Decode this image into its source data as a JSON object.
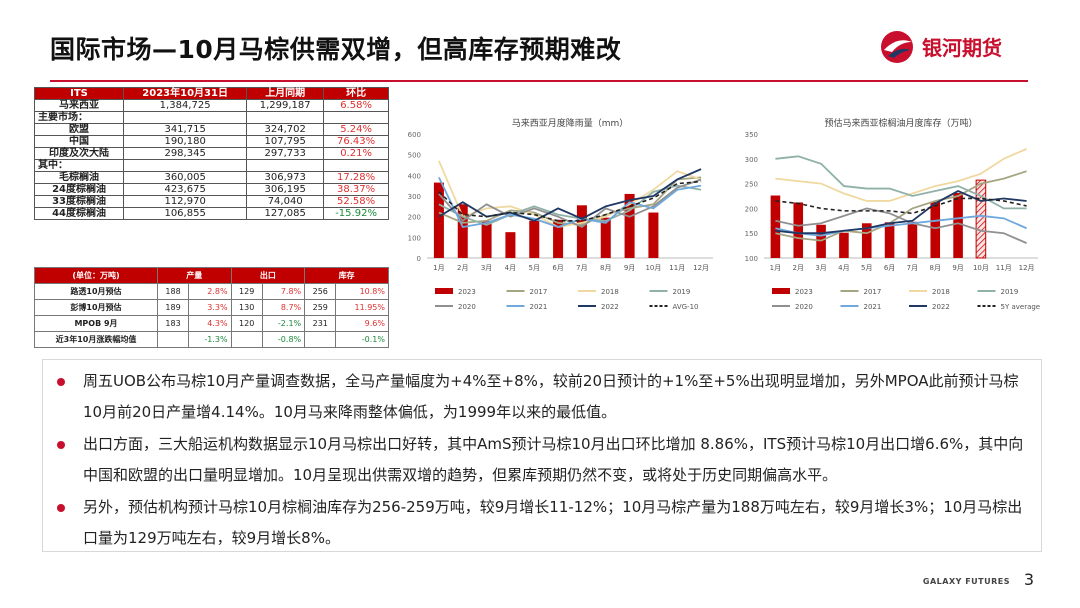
{
  "header": {
    "title": "国际市场—10月马棕供需双增，但高库存预期难改",
    "logo_text": "银河期货"
  },
  "table1": {
    "headers": [
      "ITS",
      "2023年10月31日",
      "上月同期",
      "环比"
    ],
    "rows": [
      {
        "label": "马来西亚",
        "v1": "1,384,725",
        "v2": "1,299,187",
        "chg": "6.58%",
        "sign": "pos",
        "section": false
      },
      {
        "label": "主要市场：",
        "section": true
      },
      {
        "label": "欧盟",
        "v1": "341,715",
        "v2": "324,702",
        "chg": "5.24%",
        "sign": "pos",
        "section": false
      },
      {
        "label": "中国",
        "v1": "190,180",
        "v2": "107,795",
        "chg": "76.43%",
        "sign": "pos",
        "section": false
      },
      {
        "label": "印度及次大陆",
        "v1": "298,345",
        "v2": "297,733",
        "chg": "0.21%",
        "sign": "pos",
        "section": false
      },
      {
        "label": "其中：",
        "section": true
      },
      {
        "label": "毛棕榈油",
        "v1": "360,005",
        "v2": "306,973",
        "chg": "17.28%",
        "sign": "pos",
        "section": false
      },
      {
        "label": "24度棕榈油",
        "v1": "423,675",
        "v2": "306,195",
        "chg": "38.37%",
        "sign": "pos",
        "section": false
      },
      {
        "label": "33度棕榈油",
        "v1": "112,970",
        "v2": "74,040",
        "chg": "52.58%",
        "sign": "pos",
        "section": false
      },
      {
        "label": "44度棕榈油",
        "v1": "106,855",
        "v2": "127,085",
        "chg": "-15.92%",
        "sign": "neg",
        "section": false
      }
    ]
  },
  "table2": {
    "headers": [
      "(单位：万吨)",
      "产量",
      "出口",
      "库存"
    ],
    "rows": [
      {
        "label": "路透10月预估",
        "a": "188",
        "ap": "2.8%",
        "b": "129",
        "bp": "7.8%",
        "c": "256",
        "cp": "10.8%"
      },
      {
        "label": "彭博10月预估",
        "a": "189",
        "ap": "3.3%",
        "b": "130",
        "bp": "8.7%",
        "c": "259",
        "cp": "11.95%"
      },
      {
        "label": "MPOB 9月",
        "a": "183",
        "ap": "4.3%",
        "b": "120",
        "bp": "-2.1%",
        "c": "231",
        "cp": "9.6%"
      },
      {
        "label": "近3年10月涨跌幅均值",
        "a": "",
        "ap": "-1.3%",
        "b": "",
        "bp": "-0.8%",
        "c": "",
        "cp": "-0.1%"
      }
    ]
  },
  "chart_data": [
    {
      "type": "bar",
      "title": "马来西亚月度降雨量（mm）",
      "categories": [
        "1月",
        "2月",
        "3月",
        "4月",
        "5月",
        "6月",
        "7月",
        "8月",
        "9月",
        "10月",
        "11月",
        "12月"
      ],
      "ylim": [
        0,
        600
      ],
      "yticks": [
        0,
        100,
        200,
        300,
        400,
        500,
        600
      ],
      "series": [
        {
          "name": "2023",
          "kind": "bar",
          "color": "#c00000",
          "values": [
            365,
            260,
            180,
            125,
            180,
            185,
            255,
            195,
            310,
            220,
            null,
            null
          ]
        },
        {
          "name": "2017",
          "kind": "line",
          "color": "#a5a582",
          "values": [
            220,
            170,
            180,
            230,
            220,
            170,
            160,
            210,
            240,
            260,
            380,
            390
          ]
        },
        {
          "name": "2018",
          "kind": "line",
          "color": "#f0d9a0",
          "values": [
            470,
            200,
            240,
            250,
            210,
            150,
            170,
            200,
            260,
            330,
            420,
            380
          ]
        },
        {
          "name": "2019",
          "kind": "line",
          "color": "#8fb1a8",
          "values": [
            260,
            200,
            160,
            210,
            250,
            210,
            190,
            180,
            230,
            320,
            350,
            330
          ]
        },
        {
          "name": "2020",
          "kind": "line",
          "color": "#909090",
          "values": [
            310,
            180,
            260,
            200,
            240,
            200,
            150,
            240,
            200,
            250,
            340,
            380
          ]
        },
        {
          "name": "2021",
          "kind": "line",
          "color": "#6fa8dc",
          "values": [
            390,
            150,
            170,
            210,
            190,
            150,
            190,
            170,
            270,
            240,
            330,
            350
          ]
        },
        {
          "name": "2022",
          "kind": "line",
          "color": "#1f3864",
          "values": [
            200,
            270,
            200,
            220,
            180,
            240,
            190,
            250,
            280,
            300,
            380,
            430
          ]
        },
        {
          "name": "AVG-10",
          "kind": "dash",
          "color": "#222222",
          "values": [
            320,
            210,
            200,
            220,
            210,
            180,
            180,
            210,
            250,
            290,
            360,
            370
          ]
        }
      ]
    },
    {
      "type": "bar",
      "title": "预估马来西亚棕榈油月度库存（万吨）",
      "categories": [
        "1月",
        "2月",
        "3月",
        "4月",
        "5月",
        "6月",
        "7月",
        "8月",
        "9月",
        "10月",
        "11月",
        "12月"
      ],
      "ylim": [
        100,
        350
      ],
      "yticks": [
        100,
        150,
        200,
        250,
        300,
        350
      ],
      "series": [
        {
          "name": "2023",
          "kind": "bar",
          "color": "#c00000",
          "values": [
            226,
            212,
            167,
            151,
            170,
            172,
            173,
            213,
            231,
            257,
            null,
            null
          ]
        },
        {
          "name": "2017",
          "kind": "line",
          "color": "#a5a582",
          "values": [
            150,
            140,
            135,
            155,
            150,
            170,
            200,
            215,
            225,
            250,
            260,
            275
          ]
        },
        {
          "name": "2018",
          "kind": "line",
          "color": "#f0d9a0",
          "values": [
            260,
            255,
            250,
            230,
            215,
            215,
            230,
            245,
            255,
            270,
            300,
            320
          ]
        },
        {
          "name": "2019",
          "kind": "line",
          "color": "#8fb1a8",
          "values": [
            300,
            305,
            290,
            245,
            240,
            240,
            225,
            235,
            245,
            225,
            200,
            200
          ]
        },
        {
          "name": "2020",
          "kind": "line",
          "color": "#909090",
          "values": [
            175,
            165,
            170,
            185,
            200,
            190,
            170,
            160,
            170,
            155,
            150,
            130
          ]
        },
        {
          "name": "2021",
          "kind": "line",
          "color": "#6fa8dc",
          "values": [
            160,
            150,
            145,
            155,
            160,
            165,
            170,
            175,
            180,
            185,
            180,
            160
          ]
        },
        {
          "name": "2022",
          "kind": "line",
          "color": "#1f3864",
          "values": [
            155,
            150,
            150,
            155,
            160,
            170,
            175,
            210,
            235,
            215,
            220,
            215
          ]
        },
        {
          "name": "5Y average",
          "kind": "dash",
          "color": "#222222",
          "values": [
            215,
            210,
            200,
            195,
            195,
            195,
            190,
            205,
            220,
            220,
            215,
            205
          ]
        }
      ]
    }
  ],
  "notes": [
    "周五UOB公布马棕10月产量调查数据，全马产量幅度为+4%至+8%，较前20日预计的+1%至+5%出现明显增加，另外MPOA此前预计马棕10月前20日产量增4.14%。10月马来降雨整体偏低，为1999年以来的最低值。",
    "出口方面，三大船运机构数据显示10月马棕出口好转，其中AmS预计马棕10月出口环比增加 8.86%，ITS预计马棕10月出口增6.6%，其中向中国和欧盟的出口量明显增加。10月呈现出供需双增的趋势，但累库预期仍然不变，或将处于历史同期偏高水平。",
    "另外，预估机构预计马棕10月棕榈油库存为256-259万吨，较9月增长11-12%；10月马棕产量为188万吨左右，较9月增长3%；10月马棕出口量为129万吨左右，较9月增长8%。"
  ],
  "footer": {
    "brand": "GALAXY FUTURES",
    "page": "3"
  },
  "colors": {
    "accent": "#c8102e",
    "header_red": "#c00000",
    "positive": "#e03030",
    "negative": "#1a8a3a"
  }
}
